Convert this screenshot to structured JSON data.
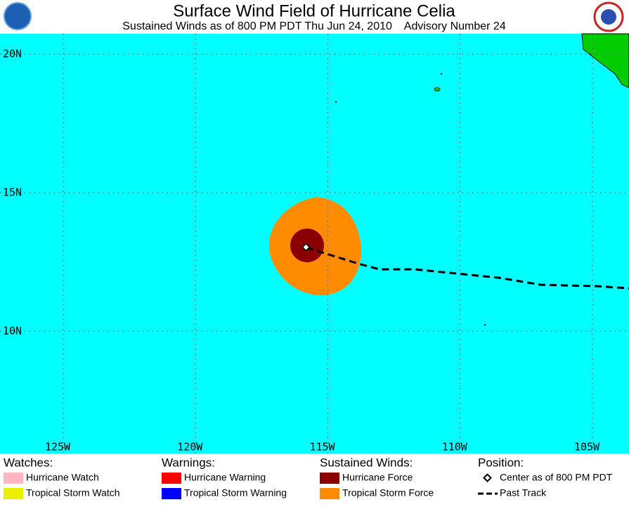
{
  "header": {
    "title": "Surface Wind Field of Hurricane Celia",
    "subtitle": "Sustained Winds as of 800 PM PDT Thu Jun 24, 2010    Advisory Number 24"
  },
  "map": {
    "lat_ticks": [
      {
        "value": 20,
        "label": "20N"
      },
      {
        "value": 15,
        "label": "15N"
      },
      {
        "value": 10,
        "label": "10N"
      }
    ],
    "lon_ticks": [
      {
        "value": -125,
        "label": "125W"
      },
      {
        "value": -120,
        "label": "120W"
      },
      {
        "value": -115,
        "label": "115W"
      },
      {
        "value": -110,
        "label": "110W"
      },
      {
        "value": -105,
        "label": "105W"
      }
    ]
  },
  "legend": {
    "watches": {
      "heading": "Watches:",
      "items": [
        "Hurricane Watch",
        "Tropical Storm Watch"
      ]
    },
    "warnings": {
      "heading": "Warnings:",
      "items": [
        "Hurricane Warning",
        "Tropical Storm Warning"
      ]
    },
    "winds": {
      "heading": "Sustained Winds:",
      "items": [
        "Hurricane Force",
        "Tropical Storm Force"
      ]
    },
    "position": {
      "heading": "Position:",
      "items": [
        "Center as of 800 PM PDT",
        "Past Track"
      ]
    }
  }
}
